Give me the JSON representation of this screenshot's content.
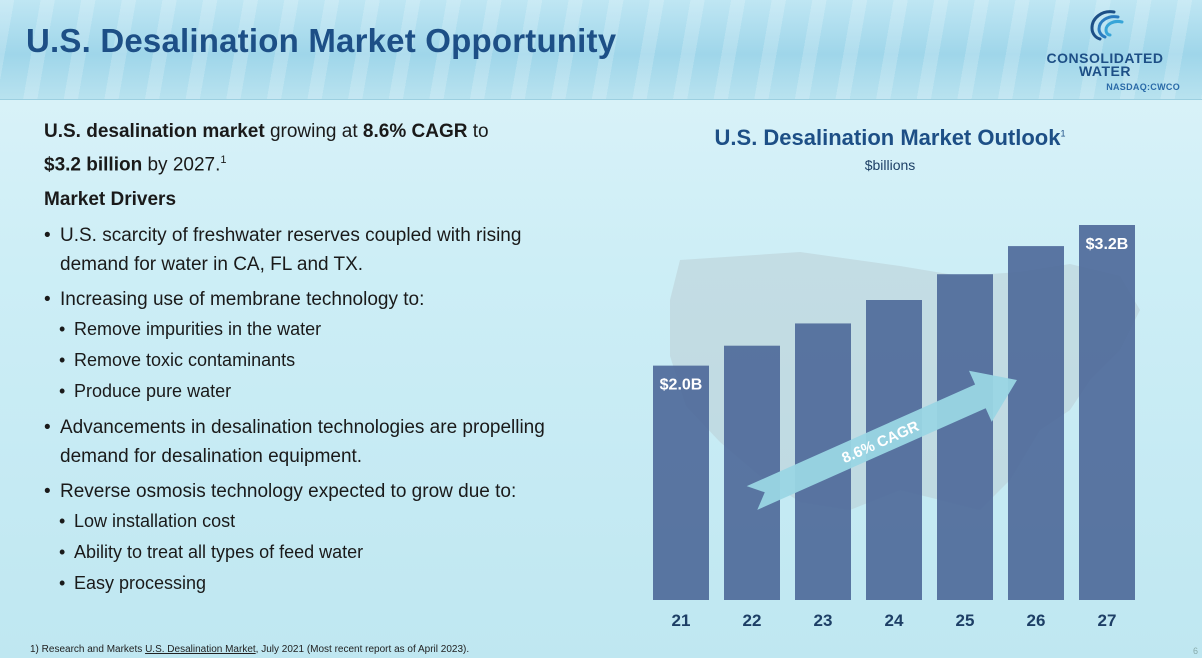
{
  "header": {
    "title": "U.S. Desalination Market Opportunity",
    "logo": {
      "line1": "CONSOLIDATED",
      "line2": "WATER",
      "ticker": "NASDAQ:CWCO"
    }
  },
  "intro": {
    "t1": "U.S. desalination market",
    "t2": " growing at ",
    "t3": "8.6% CAGR",
    "t4": " to",
    "t5": "$3.2 billion",
    "t6": " by 2027.",
    "sup": "1"
  },
  "drivers": {
    "title": "Market Drivers",
    "items": [
      {
        "level": 1,
        "text": "U.S. scarcity of freshwater reserves coupled with rising demand for water in CA, FL and TX."
      },
      {
        "level": 1,
        "text": "Increasing use of membrane technology to:"
      },
      {
        "level": 2,
        "text": "Remove impurities in the water"
      },
      {
        "level": 2,
        "text": "Remove toxic contaminants"
      },
      {
        "level": 2,
        "text": "Produce pure water"
      },
      {
        "level": 1,
        "text": "Advancements in desalination technologies are propelling demand for desalination equipment."
      },
      {
        "level": 1,
        "text": "Reverse osmosis technology expected to grow due to:"
      },
      {
        "level": 2,
        "text": "Low installation cost"
      },
      {
        "level": 2,
        "text": "Ability to treat all types of feed water"
      },
      {
        "level": 2,
        "text": "Easy processing"
      }
    ]
  },
  "footnote": {
    "prefix": "1)  Research and Markets ",
    "link": "U.S. Desalination Market",
    "suffix": ", July 2021 (Most recent report as of April 2023)."
  },
  "page_number": "6",
  "chart_data": {
    "type": "bar",
    "title": "U.S. Desalination Market Outlook",
    "title_sup": "1",
    "subtitle": "$billions",
    "categories": [
      "21",
      "22",
      "23",
      "24",
      "25",
      "26",
      "27"
    ],
    "values": [
      2.0,
      2.17,
      2.36,
      2.56,
      2.78,
      3.02,
      3.2
    ],
    "data_labels": [
      "$2.0B",
      "",
      "",
      "",
      "",
      "",
      "$3.2B"
    ],
    "annotation": "8.6% CAGR",
    "ylim": [
      0,
      3.2
    ],
    "xlabel": "",
    "ylabel": "",
    "grid": false,
    "colors": {
      "bar": "#4f6a9a",
      "arrow": "#9ad6e4",
      "arrow_text": "#ffffff",
      "label": "#ffffff",
      "axis_text": "#1d3f66"
    }
  }
}
